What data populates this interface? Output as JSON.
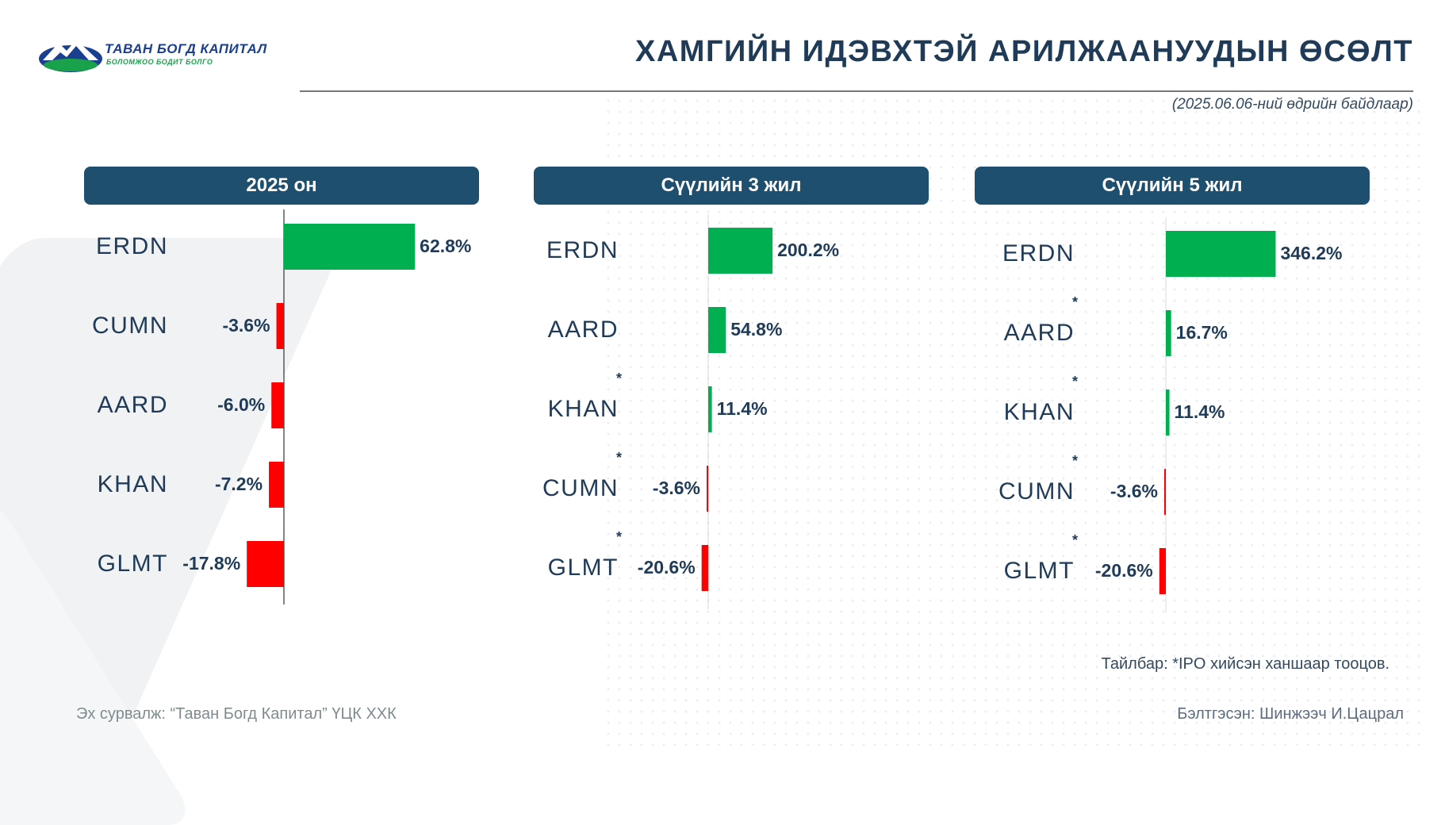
{
  "header": {
    "logo_name": "ТАВАН БОГД КАПИТАЛ",
    "logo_tagline": "БОЛОМЖОО БОДИТ БОЛГО",
    "title": "ХАМГИЙН ИДЭВХТЭЙ АРИЛЖААНУУДЫН ӨСӨЛТ",
    "subtitle": "(2025.06.06-ний өдрийн байдлаар)"
  },
  "colors": {
    "positive": "#00b050",
    "negative": "#ff0000",
    "header_bg": "#1e4f6e",
    "label": "#1f3b57"
  },
  "chart_data": [
    {
      "type": "bar",
      "orientation": "horizontal",
      "title": "2025 он",
      "categories": [
        "ERDN",
        "CUMN",
        "AARD",
        "KHAN",
        "GLMT"
      ],
      "values": [
        62.8,
        -3.6,
        -6.0,
        -7.2,
        -17.8
      ],
      "value_labels": [
        "62.8%",
        "-3.6%",
        "-6.0%",
        "-7.2%",
        "-17.8%"
      ],
      "ipo_marked": [
        false,
        false,
        false,
        false,
        false
      ]
    },
    {
      "type": "bar",
      "orientation": "horizontal",
      "title": "Сүүлийн 3 жил",
      "categories": [
        "ERDN",
        "AARD",
        "KHAN",
        "CUMN",
        "GLMT"
      ],
      "values": [
        200.2,
        54.8,
        11.4,
        -3.6,
        -20.6
      ],
      "value_labels": [
        "200.2%",
        "54.8%",
        "11.4%",
        "-3.6%",
        "-20.6%"
      ],
      "ipo_marked": [
        false,
        false,
        true,
        true,
        true
      ]
    },
    {
      "type": "bar",
      "orientation": "horizontal",
      "title": "Сүүлийн 5 жил",
      "categories": [
        "ERDN",
        "AARD",
        "KHAN",
        "CUMN",
        "GLMT"
      ],
      "values": [
        346.2,
        16.7,
        11.4,
        -3.6,
        -20.6
      ],
      "value_labels": [
        "346.2%",
        "16.7%",
        "11.4%",
        "-3.6%",
        "-20.6%"
      ],
      "ipo_marked": [
        false,
        true,
        true,
        true,
        true
      ]
    }
  ],
  "footer": {
    "note": "Тайлбар: *IPO хийсэн ханшаар тооцов.",
    "source": "Эх сурвалж: “Таван Богд Капитал” ҮЦК ХХК",
    "prepared_by": "Бэлтгэсэн: Шинжээч И.Цацрал"
  }
}
